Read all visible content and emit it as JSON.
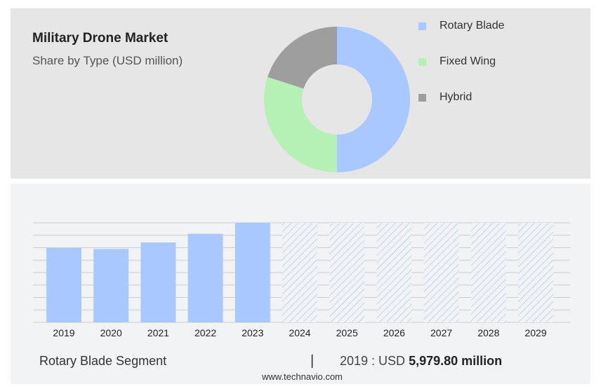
{
  "chart_data": [
    {
      "type": "pie",
      "title": "Military Drone Market",
      "subtitle": "Share by Type (USD million)",
      "donut": true,
      "series": [
        {
          "name": "Rotary Blade",
          "value": 50,
          "color": "#a8c8ff"
        },
        {
          "name": "Fixed Wing",
          "value": 30,
          "color": "#b5f0b5"
        },
        {
          "name": "Hybrid",
          "value": 20,
          "color": "#9e9e9e"
        }
      ],
      "legend": "right"
    },
    {
      "type": "bar",
      "categories": [
        "2019",
        "2020",
        "2021",
        "2022",
        "2023",
        "2024",
        "2025",
        "2026",
        "2027",
        "2028",
        "2029"
      ],
      "values": [
        5979.8,
        5900,
        6420,
        7120,
        8000,
        8000,
        8000,
        8000,
        8000,
        8000,
        8000
      ],
      "forecast_start": "2024",
      "bar_color": "#a8c8ff",
      "ylim": [
        0,
        8000
      ],
      "grid": true
    }
  ],
  "footer": {
    "segment": "Rotary Blade Segment",
    "separator": "|",
    "year_prefix": "2019 : USD ",
    "value": "5,979.80 million",
    "source": "www.technavio.com"
  }
}
